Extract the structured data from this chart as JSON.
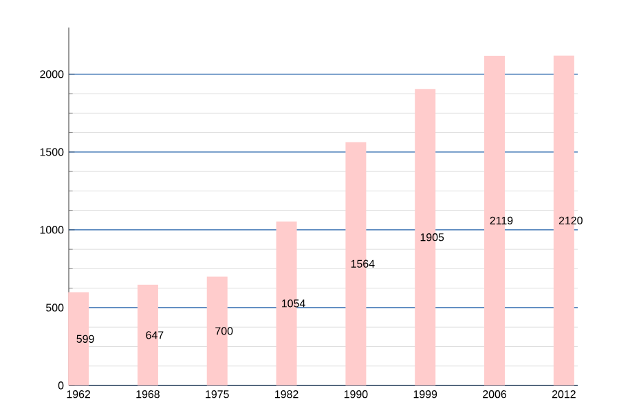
{
  "chart_data": {
    "type": "bar",
    "categories": [
      "1962",
      "1968",
      "1975",
      "1982",
      "1990",
      "1999",
      "2006",
      "2012"
    ],
    "values": [
      599,
      647,
      700,
      1054,
      1564,
      1905,
      2119,
      2120
    ],
    "color": "#ffcccc",
    "ylim": [
      0,
      2300
    ],
    "yticks": [
      0,
      500,
      1000,
      1500,
      2000
    ],
    "grid": "y",
    "data_labels": true
  }
}
